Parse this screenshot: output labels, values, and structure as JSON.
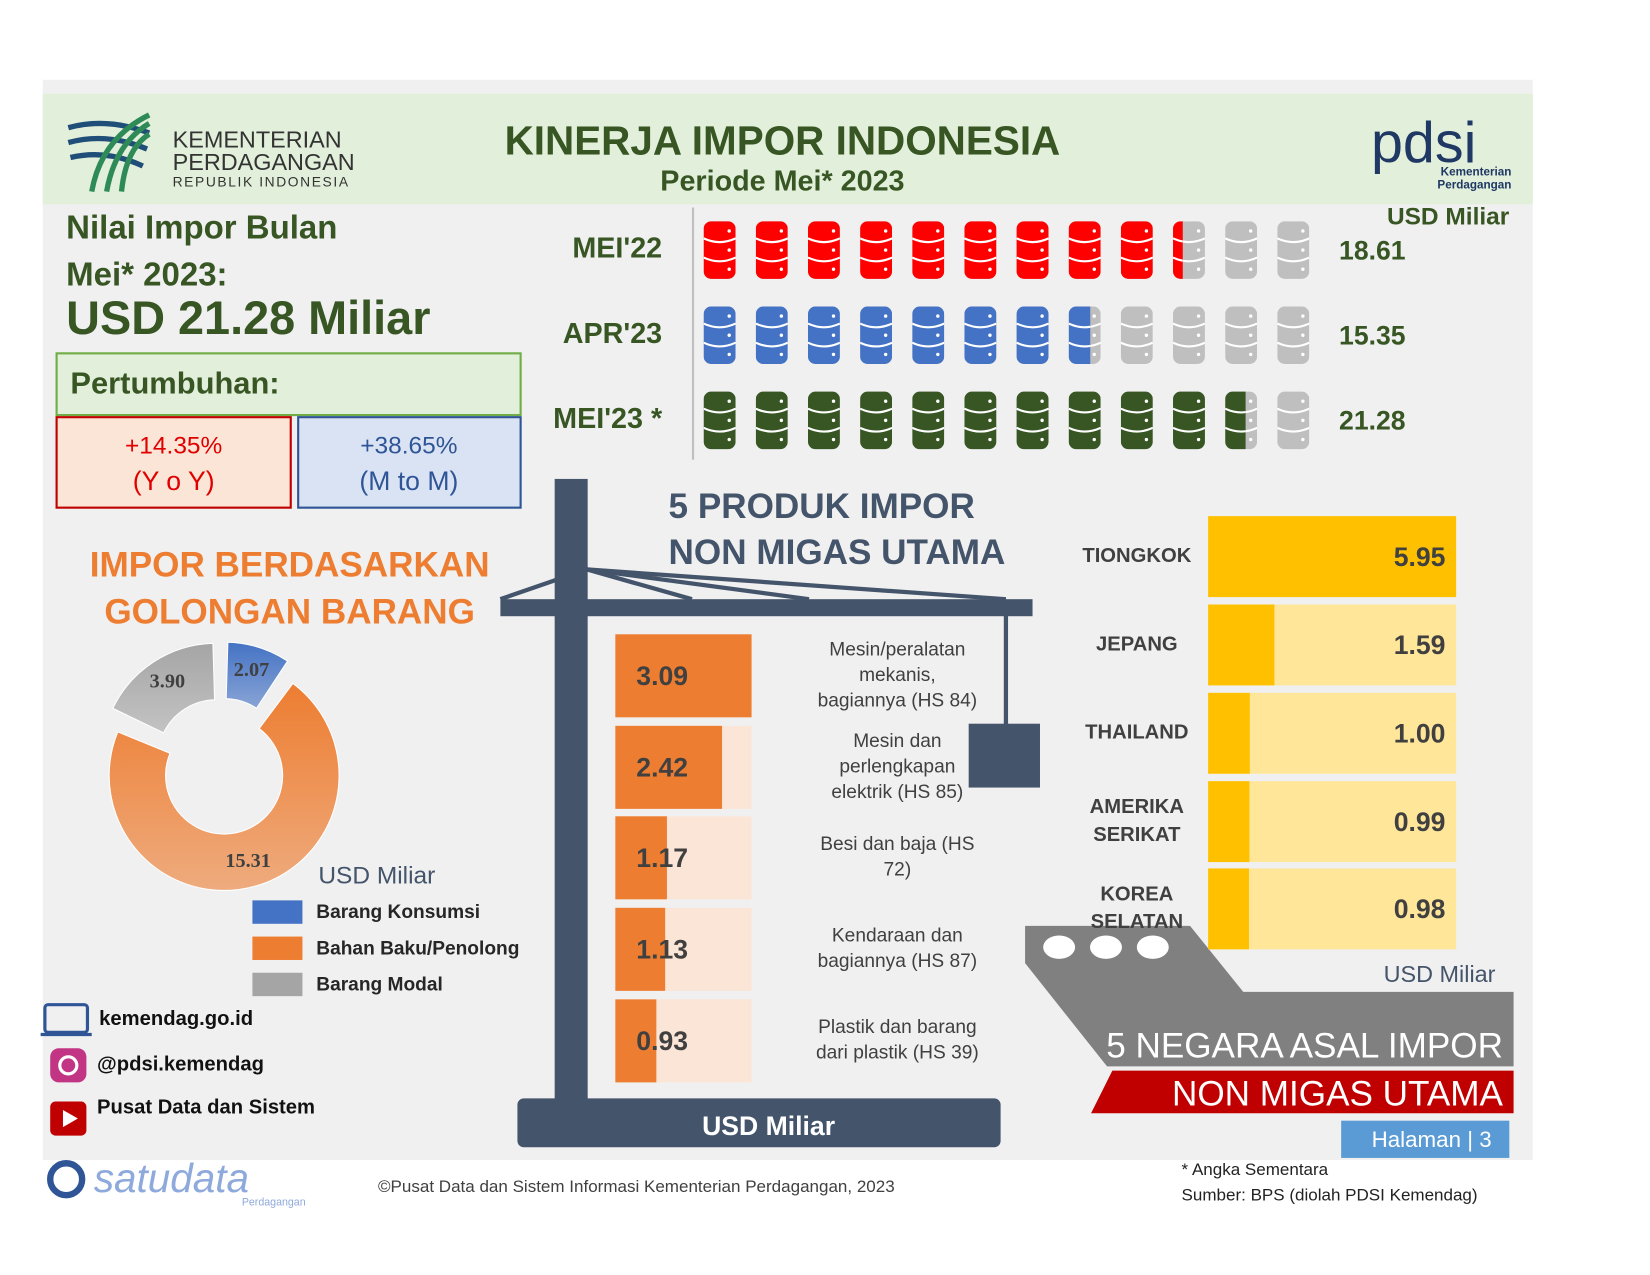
{
  "header": {
    "ministry": [
      "KEMENTERIAN",
      "PERDAGANGAN",
      "REPUBLIK INDONESIA"
    ],
    "title": "KINERJA IMPOR INDONESIA",
    "subtitle": "Periode Mei* 2023",
    "brand": "pdsi",
    "brand_sub": [
      "Kementerian",
      "Perdagangan"
    ]
  },
  "summary": {
    "label": [
      "Nilai Impor Bulan",
      "Mei* 2023:"
    ],
    "value": "USD 21.28 Miliar",
    "growth_title": "Pertumbuhan:",
    "yoy": {
      "value": "+14.35%",
      "label": "(Y o Y)"
    },
    "mtm": {
      "value": "+38.65%",
      "label": "(M to M)"
    }
  },
  "chart_data": [
    {
      "type": "pictograph",
      "unit": "USD Miliar",
      "categories": [
        "MEI'22",
        "APR'23",
        "MEI'23 *"
      ],
      "values": [
        18.61,
        15.35,
        21.28
      ],
      "colors": [
        "#ff0000",
        "#4472c4",
        "#375623"
      ],
      "xlim": [
        0,
        24
      ]
    },
    {
      "type": "pie",
      "donut": true,
      "title": [
        "IMPOR BERDASARKAN",
        "GOLONGAN BARANG"
      ],
      "unit": "USD Miliar",
      "categories": [
        "Barang Konsumsi",
        "Bahan Baku/Penolong",
        "Barang Modal"
      ],
      "values": [
        2.07,
        15.31,
        3.9
      ],
      "value_labels": [
        "2.07",
        "15.31",
        "3.90"
      ],
      "colors": [
        "#4472c4",
        "#ed7d31",
        "#a5a5a5"
      ]
    },
    {
      "type": "bar",
      "orientation": "horizontal",
      "title": [
        "5 PRODUK IMPOR",
        "NON MIGAS UTAMA"
      ],
      "unit": "USD Miliar",
      "categories": [
        [
          "Mesin/peralatan",
          "mekanis,",
          "bagiannya  (HS 84)"
        ],
        [
          "Mesin dan",
          "perlengkapan",
          "elektrik (HS 85)"
        ],
        [
          "Besi dan baja (HS",
          "72)"
        ],
        [
          "Kendaraan dan",
          "bagiannya (HS 87)"
        ],
        [
          "Plastik dan barang",
          "dari plastik (HS 39)"
        ]
      ],
      "values": [
        3.09,
        2.42,
        1.17,
        1.13,
        0.93
      ],
      "color": "#ed7d31",
      "track_color": "#fbe5d6",
      "xlim": [
        0,
        3.09
      ]
    },
    {
      "type": "bar",
      "orientation": "horizontal",
      "title": [
        "5 NEGARA ASAL IMPOR",
        "NON MIGAS UTAMA"
      ],
      "unit": "USD Miliar",
      "categories": [
        [
          "TIONGKOK"
        ],
        [
          "JEPANG"
        ],
        [
          "THAILAND"
        ],
        [
          "AMERIKA",
          "SERIKAT"
        ],
        [
          "KOREA",
          "SELATAN"
        ]
      ],
      "values": [
        5.95,
        1.59,
        1,
        0.99,
        0.98
      ],
      "value_labels": [
        "5.95",
        "1.59",
        "1.00",
        "0.99",
        "0.98"
      ],
      "color": "#ffc000",
      "track_color": "#ffe699",
      "xlim": [
        0,
        5.95
      ]
    }
  ],
  "footer": {
    "website": "kemendag.go.id",
    "instagram": "@pdsi.kemendag",
    "youtube": "Pusat Data dan Sistem",
    "brand": "satudata",
    "brand_sub": "Perdagangan",
    "copyright": "©Pusat Data dan Sistem Informasi Kementerian Perdagangan, 2023",
    "note": "* Angka Sementara",
    "source": "Sumber: BPS (diolah PDSI Kemendag)",
    "page": "Halaman | 3"
  }
}
